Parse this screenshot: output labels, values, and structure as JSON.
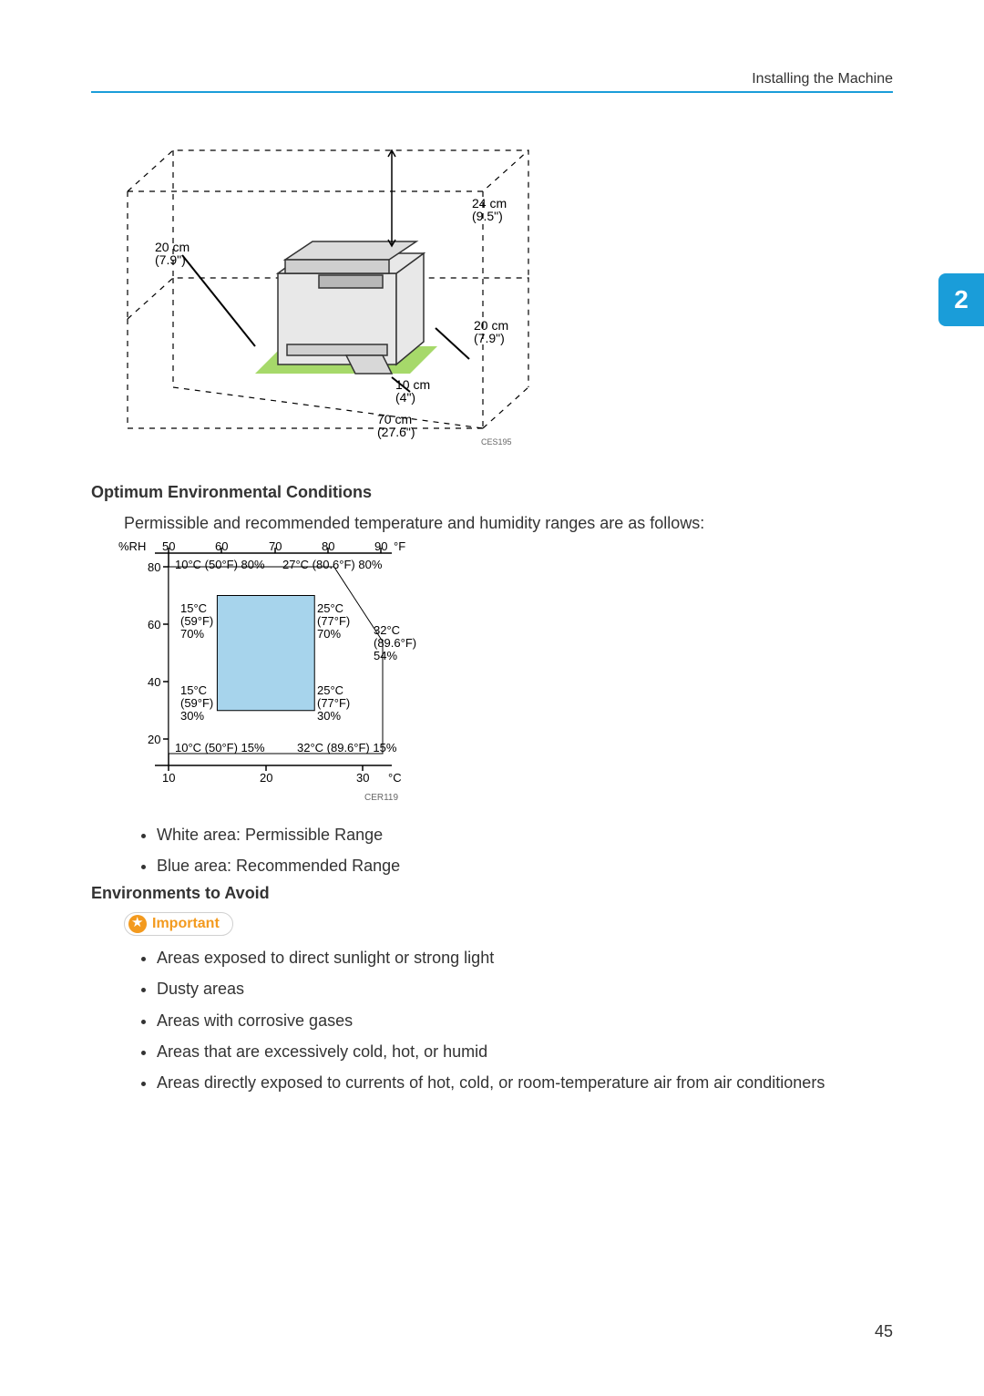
{
  "header": {
    "right": "Installing the Machine"
  },
  "chapter": "2",
  "page_number": "45",
  "diag1": {
    "code": "CES195",
    "dims": {
      "left": {
        "cm": "20 cm",
        "in": "(7.9\")"
      },
      "back": {
        "cm": "24 cm",
        "in": "(9.5\")"
      },
      "right": {
        "cm": "20 cm",
        "in": "(7.9\")"
      },
      "front": {
        "cm": "10 cm",
        "in": "(4\")"
      },
      "bottom": {
        "cm": "70 cm",
        "in": "(27.6\")"
      }
    }
  },
  "section1": {
    "title": "Optimum Environmental Conditions",
    "intro": "Permissible and recommended temperature and humidity ranges are as follows:"
  },
  "chart": {
    "code": "CER119",
    "axes": {
      "rh_label": "%RH",
      "f_label": "°F",
      "c_label": "°C",
      "rh_ticks": [
        "20",
        "40",
        "60",
        "80"
      ],
      "c_ticks": [
        "10",
        "20",
        "30"
      ],
      "f_ticks": [
        "50",
        "60",
        "70",
        "80",
        "90"
      ]
    },
    "permissible": {
      "points": [
        {
          "c": 10,
          "rh": 15,
          "label": "10°C (50°F) 15%"
        },
        {
          "c": 32,
          "rh": 15,
          "label": "32°C (89.6°F) 15%"
        },
        {
          "c": 32,
          "rh": 54,
          "label": "32°C\n(89.6°F)\n54%"
        },
        {
          "c": 27,
          "rh": 80,
          "label": "27°C (80.6°F) 80%"
        },
        {
          "c": 10,
          "rh": 80,
          "label": "10°C (50°F) 80%"
        }
      ],
      "fill": "#ffffff",
      "stroke": "#000000"
    },
    "recommended": {
      "points": [
        {
          "c": 15,
          "rh": 30,
          "label": "15°C\n(59°F)\n30%"
        },
        {
          "c": 25,
          "rh": 30,
          "label": "25°C\n(77°F)\n30%"
        },
        {
          "c": 25,
          "rh": 70,
          "label": "25°C\n(77°F)\n70%"
        },
        {
          "c": 15,
          "rh": 70,
          "label": "15°C\n(59°F)\n70%"
        }
      ],
      "fill": "#a7d4ec",
      "stroke": "#000000"
    }
  },
  "legend": {
    "items": [
      "White area: Permissible Range",
      "Blue area: Recommended Range"
    ]
  },
  "section2": {
    "title": "Environments to Avoid",
    "important_label": "Important",
    "items": [
      "Areas exposed to direct sunlight or strong light",
      "Dusty areas",
      "Areas with corrosive gases",
      "Areas that are excessively cold, hot, or humid",
      "Areas directly exposed to currents of hot, cold, or room-temperature air from air conditioners"
    ]
  }
}
